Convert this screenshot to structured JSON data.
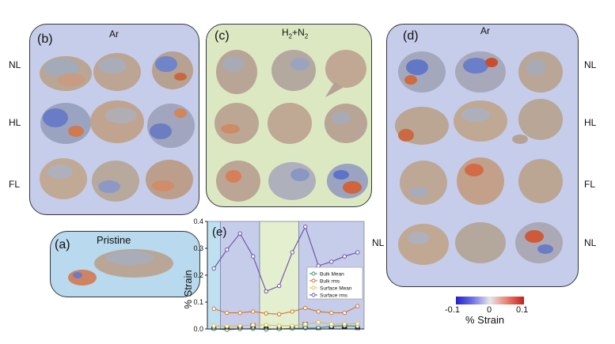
{
  "panels": {
    "b": {
      "tag": "(b)",
      "title": "Ar"
    },
    "c": {
      "tag": "(c)",
      "title_main": "H",
      "title_sub1": "2",
      "title_mid": "+N",
      "title_sub2": "2"
    },
    "d": {
      "tag": "(d)",
      "title": "Ar"
    },
    "a": {
      "tag": "(a)",
      "title": "Pristine"
    },
    "e": {
      "tag": "(e)"
    }
  },
  "row_labels_left": [
    "NL",
    "HL",
    "FL"
  ],
  "row_labels_right": [
    "NL",
    "HL",
    "FL",
    "NL"
  ],
  "row_label_e": "NL",
  "colorbar": {
    "min_label": "-0.1",
    "mid_label": "0",
    "max_label": "0.1",
    "title": "% Strain"
  },
  "chart_data": {
    "type": "line",
    "ylabel": "% Strain",
    "ylim": [
      0,
      0.4
    ],
    "yticks": [
      "0.0",
      "0.1",
      "0.2",
      "0.3",
      "0.4"
    ],
    "x": [
      1,
      2,
      3,
      4,
      5,
      6,
      7,
      8,
      9,
      10,
      11,
      12
    ],
    "series": [
      {
        "name": "Bulk Mean",
        "color": "#3b8a6e",
        "values": [
          0.001,
          -0.003,
          0.0,
          0.001,
          -0.002,
          0.0,
          0.002,
          0.003,
          0.004,
          0.01,
          0.012,
          0.01
        ]
      },
      {
        "name": "Bulk rms",
        "color": "#d0742a",
        "values": [
          0.075,
          0.06,
          0.06,
          0.065,
          0.058,
          0.055,
          0.065,
          0.078,
          0.065,
          0.06,
          0.06,
          0.085
        ]
      },
      {
        "name": "Surface Mean",
        "color": "#e4b84a",
        "values": [
          0.012,
          0.01,
          0.012,
          0.015,
          0.015,
          0.012,
          0.012,
          0.018,
          0.025,
          0.018,
          0.018,
          0.02
        ]
      },
      {
        "name": "Surface rms",
        "color": "#6a4fa0",
        "values": [
          0.225,
          0.295,
          0.355,
          0.27,
          0.14,
          0.16,
          0.285,
          0.38,
          0.235,
          0.25,
          0.27,
          0.285
        ]
      }
    ],
    "bars": {
      "values": [
        0.0,
        0.0,
        0.01,
        0.02,
        0.0,
        0.0,
        0.01,
        0.025,
        0.0,
        0.01,
        0.02,
        0.0
      ]
    },
    "legend_position": "center-right",
    "groups": [
      "Ar (b)",
      "H2+N2 (c)",
      "Ar (d)"
    ]
  }
}
